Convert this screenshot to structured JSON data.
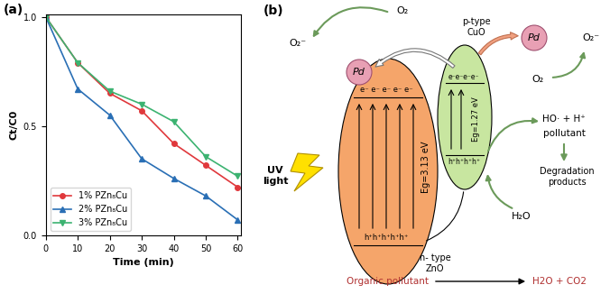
{
  "chart_data": {
    "type": "line",
    "title": "(a)",
    "x_label": "Time (min)",
    "y_label": "Ct/C0",
    "x": [
      0,
      10,
      20,
      30,
      40,
      50,
      60
    ],
    "xlim": [
      0,
      61
    ],
    "xticks": [
      0,
      10,
      20,
      30,
      40,
      50,
      60
    ],
    "ylim": [
      0,
      1.01
    ],
    "yticks": [
      {
        "value": 0,
        "label": "0.0"
      },
      {
        "value": 0.5,
        "label": "0.5"
      },
      {
        "value": 1.0,
        "label": "1.0"
      }
    ],
    "legend": "lower left",
    "series": [
      {
        "name": "1% PZn₈Cu",
        "color": "#e0383c",
        "marker": "circle",
        "values": [
          1.0,
          0.79,
          0.65,
          0.57,
          0.42,
          0.32,
          0.22
        ]
      },
      {
        "name": "2% PZn₈Cu",
        "color": "#2a6fb5",
        "marker": "triangle_up",
        "values": [
          1.0,
          0.67,
          0.55,
          0.35,
          0.26,
          0.18,
          0.07
        ]
      },
      {
        "name": "3% PZn₈Cu",
        "color": "#3cb371",
        "marker": "triangle_down",
        "values": [
          1.0,
          0.79,
          0.66,
          0.6,
          0.52,
          0.36,
          0.27
        ]
      }
    ]
  },
  "diagram": {
    "label": "(b)",
    "zno": {
      "name": "n- type\nZnO",
      "band_gap": "Eg=3.13 eV",
      "electrons": "e⁻ e⁻ e⁻ e⁻ e⁻",
      "holes": "h⁺h⁺h⁺h⁺h⁺"
    },
    "cuo": {
      "name": "p-type\nCuO",
      "band_gap": "Eg=1.27 eV",
      "electrons": "e⁻e⁻e⁻e⁻",
      "holes": "h⁺h⁺h⁺h⁺"
    },
    "cocatalyst": "Pd",
    "oxygen": "O₂",
    "superoxide": "O₂⁻",
    "light": "UV\nlight",
    "radicals": "HO· + H⁺",
    "pollutant": "pollutant",
    "products": "Degradation\nproducts",
    "water": "H₂O",
    "overall": {
      "reactant": "Organic pollutant",
      "products": "H2O + CO2"
    }
  }
}
